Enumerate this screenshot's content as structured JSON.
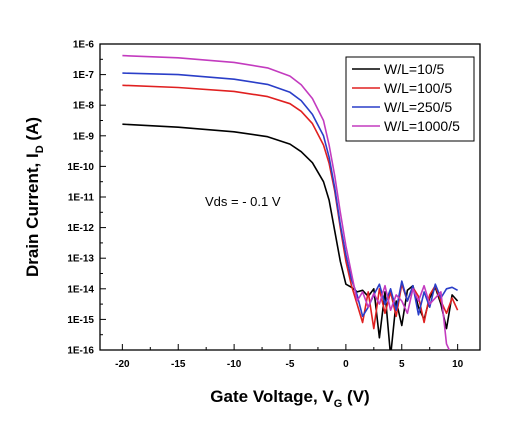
{
  "chart_data": {
    "type": "line",
    "title": "",
    "xlabel": {
      "main": "Gate Voltage, V",
      "sub": "G",
      "unit": " (V)"
    },
    "ylabel": {
      "main": "Drain Current, I",
      "sub": "D",
      "unit": " (A)"
    },
    "xlim": [
      -22,
      12
    ],
    "ylim_log10": [
      -16,
      -6
    ],
    "y_scale": "log",
    "x_ticks": [
      -20,
      -15,
      -10,
      -5,
      0,
      5,
      10
    ],
    "x_tick_labels": [
      "-20",
      "-15",
      "-10",
      "-5",
      "0",
      "5",
      "10"
    ],
    "y_ticks_log10": [
      -6,
      -7,
      -8,
      -9,
      -10,
      -11,
      -12,
      -13,
      -14,
      -15,
      -16
    ],
    "y_tick_labels": [
      "1E-6",
      "1E-7",
      "1E-8",
      "1E-9",
      "1E-10",
      "1E-11",
      "1E-12",
      "1E-13",
      "1E-14",
      "1E-15",
      "1E-16"
    ],
    "grid": false,
    "legend_position": "top-right",
    "annotation": "Vds = - 0.1 V",
    "series": [
      {
        "name": "W/L=10/5",
        "color": "#000000",
        "points_log10": [
          [
            -20,
            -8.62
          ],
          [
            -15,
            -8.72
          ],
          [
            -10,
            -8.87
          ],
          [
            -7,
            -9.03
          ],
          [
            -5,
            -9.27
          ],
          [
            -4,
            -9.52
          ],
          [
            -3,
            -9.88
          ],
          [
            -2,
            -10.5
          ],
          [
            -1.5,
            -11.1
          ],
          [
            -1,
            -12.1
          ],
          [
            -0.5,
            -13.1
          ],
          [
            0,
            -13.85
          ],
          [
            0.5,
            -13.95
          ],
          [
            1,
            -14.1
          ],
          [
            1.5,
            -14.05
          ],
          [
            2,
            -14.25
          ],
          [
            2.5,
            -14.0
          ],
          [
            3,
            -15.6
          ],
          [
            3.5,
            -14.1
          ],
          [
            4,
            -16.2
          ],
          [
            4.5,
            -14.4
          ],
          [
            5,
            -15.2
          ],
          [
            5.5,
            -14.05
          ],
          [
            6,
            -13.9
          ],
          [
            6.5,
            -14.6
          ],
          [
            7,
            -15.0
          ],
          [
            7.5,
            -14.3
          ],
          [
            8,
            -13.95
          ],
          [
            8.5,
            -14.5
          ],
          [
            9,
            -15.3
          ],
          [
            9.5,
            -14.2
          ],
          [
            10,
            -14.4
          ]
        ]
      },
      {
        "name": "W/L=100/5",
        "color": "#e02020",
        "points_log10": [
          [
            -20,
            -7.35
          ],
          [
            -15,
            -7.42
          ],
          [
            -10,
            -7.55
          ],
          [
            -7,
            -7.72
          ],
          [
            -5,
            -7.95
          ],
          [
            -4,
            -8.2
          ],
          [
            -3,
            -8.6
          ],
          [
            -2,
            -9.3
          ],
          [
            -1.5,
            -9.9
          ],
          [
            -1,
            -10.8
          ],
          [
            -0.5,
            -12.0
          ],
          [
            0,
            -13.1
          ],
          [
            0.5,
            -13.9
          ],
          [
            1,
            -14.5
          ],
          [
            1.5,
            -15.1
          ],
          [
            2,
            -14.1
          ],
          [
            2.5,
            -15.3
          ],
          [
            3,
            -14.0
          ],
          [
            3.5,
            -14.8
          ],
          [
            4,
            -14.1
          ],
          [
            4.5,
            -14.9
          ],
          [
            5,
            -13.85
          ],
          [
            5.5,
            -14.4
          ],
          [
            6,
            -13.95
          ],
          [
            6.5,
            -14.25
          ],
          [
            7,
            -15.1
          ],
          [
            7.5,
            -14.2
          ],
          [
            8,
            -13.9
          ],
          [
            8.5,
            -14.4
          ],
          [
            9,
            -14.8
          ],
          [
            9.5,
            -14.3
          ],
          [
            10,
            -14.7
          ]
        ]
      },
      {
        "name": "W/L=250/5",
        "color": "#2a3ec8",
        "points_log10": [
          [
            -20,
            -6.95
          ],
          [
            -15,
            -7.0
          ],
          [
            -10,
            -7.15
          ],
          [
            -7,
            -7.32
          ],
          [
            -5,
            -7.58
          ],
          [
            -4,
            -7.85
          ],
          [
            -3,
            -8.3
          ],
          [
            -2,
            -9.0
          ],
          [
            -1.5,
            -9.7
          ],
          [
            -1,
            -10.7
          ],
          [
            -0.5,
            -11.9
          ],
          [
            0,
            -12.9
          ],
          [
            0.5,
            -13.7
          ],
          [
            1,
            -14.2
          ],
          [
            1.5,
            -14.9
          ],
          [
            2,
            -14.6
          ],
          [
            2.5,
            -14.2
          ],
          [
            3,
            -13.85
          ],
          [
            3.5,
            -14.5
          ],
          [
            4,
            -14.0
          ],
          [
            4.5,
            -14.7
          ],
          [
            5,
            -13.75
          ],
          [
            5.5,
            -14.4
          ],
          [
            6,
            -13.9
          ],
          [
            6.5,
            -14.85
          ],
          [
            7,
            -14.1
          ],
          [
            7.5,
            -14.6
          ],
          [
            8,
            -13.85
          ],
          [
            8.5,
            -14.3
          ],
          [
            9,
            -14.0
          ],
          [
            9.5,
            -13.95
          ],
          [
            10,
            -14.05
          ]
        ]
      },
      {
        "name": "W/L=1000/5",
        "color": "#c33bbf",
        "points_log10": [
          [
            -20,
            -6.38
          ],
          [
            -15,
            -6.45
          ],
          [
            -10,
            -6.6
          ],
          [
            -7,
            -6.78
          ],
          [
            -5,
            -7.05
          ],
          [
            -4,
            -7.33
          ],
          [
            -3,
            -7.78
          ],
          [
            -2,
            -8.5
          ],
          [
            -1.5,
            -9.3
          ],
          [
            -1,
            -10.3
          ],
          [
            -0.5,
            -11.5
          ],
          [
            0,
            -12.6
          ],
          [
            0.5,
            -13.5
          ],
          [
            1,
            -14.4
          ],
          [
            1.5,
            -14.1
          ],
          [
            2,
            -14.6
          ],
          [
            2.5,
            -14.15
          ],
          [
            3,
            -14.5
          ],
          [
            3.5,
            -13.9
          ],
          [
            4,
            -14.7
          ],
          [
            4.5,
            -14.2
          ],
          [
            5,
            -14.4
          ],
          [
            5.5,
            -14.8
          ],
          [
            6,
            -14.0
          ],
          [
            6.5,
            -14.4
          ],
          [
            7,
            -13.9
          ],
          [
            7.5,
            -14.5
          ],
          [
            8,
            -14.3
          ],
          [
            8.5,
            -14.1
          ],
          [
            9,
            -15.8
          ],
          [
            9.5,
            -16.2
          ],
          [
            10,
            -16.6
          ]
        ]
      }
    ]
  }
}
